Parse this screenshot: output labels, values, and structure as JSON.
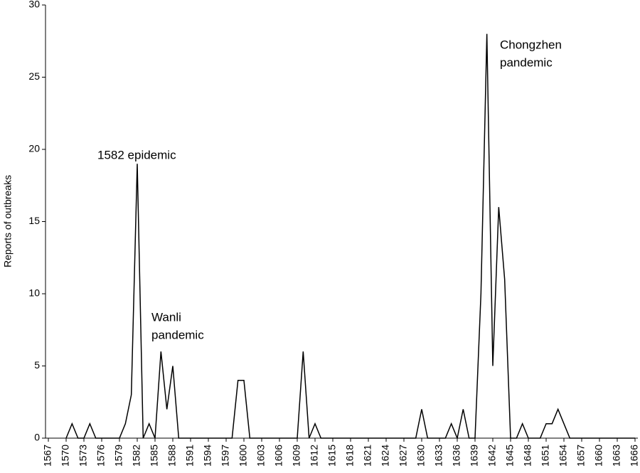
{
  "chart_data": {
    "type": "line",
    "ylabel": "Reports of outbreaks",
    "annotations": [
      [
        "1582 epidemic"
      ],
      [
        "Wanli",
        "pandemic"
      ],
      [
        "Chongzhen",
        "pandemic"
      ]
    ],
    "x": [
      1570,
      1571,
      1572,
      1573,
      1574,
      1575,
      1576,
      1577,
      1578,
      1579,
      1580,
      1581,
      1582,
      1583,
      1584,
      1585,
      1586,
      1587,
      1588,
      1589,
      1590,
      1591,
      1592,
      1593,
      1594,
      1595,
      1596,
      1597,
      1598,
      1599,
      1600,
      1601,
      1602,
      1603,
      1604,
      1605,
      1606,
      1607,
      1608,
      1609,
      1610,
      1611,
      1612,
      1613,
      1614,
      1615,
      1616,
      1617,
      1618,
      1619,
      1620,
      1621,
      1622,
      1623,
      1624,
      1625,
      1626,
      1627,
      1628,
      1629,
      1630,
      1631,
      1632,
      1633,
      1634,
      1635,
      1636,
      1637,
      1638,
      1639,
      1640,
      1641,
      1642,
      1643,
      1644,
      1645,
      1646,
      1647,
      1648,
      1649,
      1650,
      1651,
      1652,
      1653,
      1654,
      1655,
      1656,
      1657,
      1658,
      1659,
      1660,
      1661,
      1662,
      1663,
      1664,
      1665,
      1666
    ],
    "values": [
      0,
      1,
      0,
      0,
      1,
      0,
      0,
      0,
      0,
      0,
      1,
      3,
      19,
      0,
      1,
      0,
      6,
      2,
      5,
      0,
      0,
      0,
      0,
      0,
      0,
      0,
      0,
      0,
      0,
      4,
      4,
      0,
      0,
      0,
      0,
      0,
      0,
      0,
      0,
      0,
      6,
      0,
      1,
      0,
      0,
      0,
      0,
      0,
      0,
      0,
      0,
      0,
      0,
      0,
      0,
      0,
      0,
      0,
      0,
      0,
      2,
      0,
      0,
      0,
      0,
      1,
      0,
      2,
      0,
      0,
      10,
      28,
      5,
      16,
      11,
      0,
      0,
      1,
      0,
      0,
      0,
      1,
      1,
      2,
      1,
      0,
      0,
      0,
      0,
      0,
      0,
      0,
      0,
      0,
      0,
      0,
      0
    ],
    "color": "#000000",
    "xlim": [
      1567,
      1666
    ],
    "xticks": [
      1567,
      1570,
      1573,
      1576,
      1579,
      1582,
      1585,
      1588,
      1591,
      1594,
      1597,
      1600,
      1603,
      1606,
      1609,
      1612,
      1615,
      1618,
      1621,
      1624,
      1627,
      1630,
      1633,
      1636,
      1639,
      1642,
      1645,
      1648,
      1651,
      1654,
      1657,
      1660,
      1663,
      1666
    ],
    "ylim": [
      0,
      30
    ],
    "yticks": [
      0,
      5,
      10,
      15,
      20,
      25,
      30
    ],
    "grid": false
  }
}
